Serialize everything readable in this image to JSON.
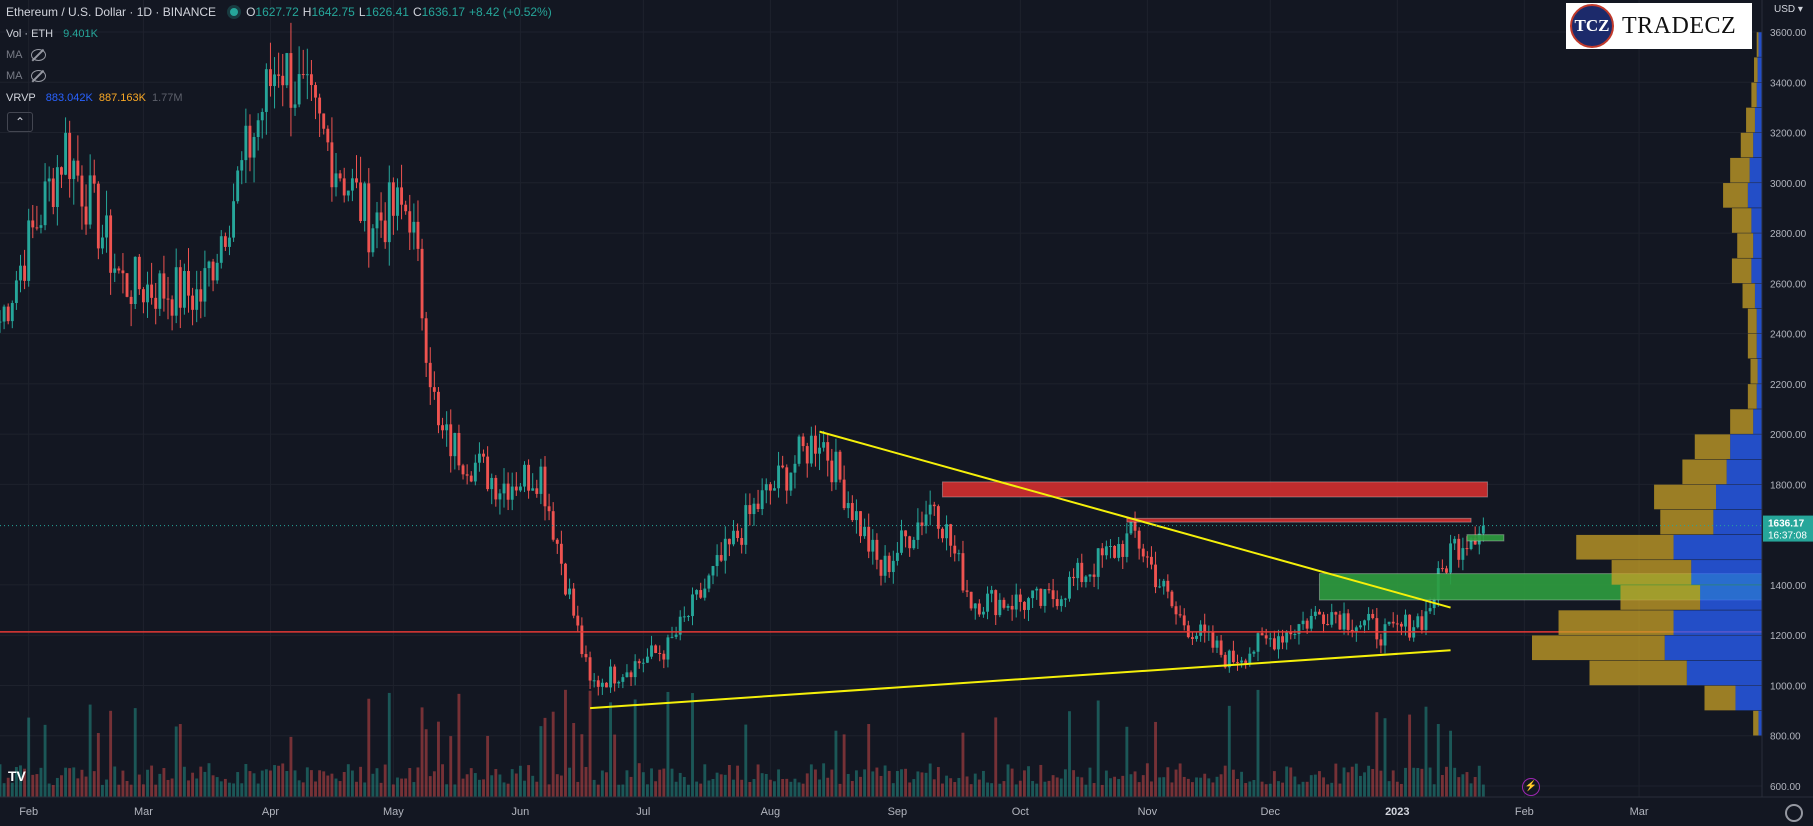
{
  "header": {
    "symbol": "Ethereum / U.S. Dollar · 1D · BINANCE",
    "open_label": "O",
    "open": "1627.72",
    "high_label": "H",
    "high": "1642.75",
    "low_label": "L",
    "low": "1626.41",
    "close_label": "C",
    "close": "1636.17",
    "change": "+8.42 (+0.52%)"
  },
  "indicators": [
    {
      "name": "Vol · ETH",
      "value": "9.401K"
    },
    {
      "name": "MA"
    },
    {
      "name": "MA"
    },
    {
      "name": "VRVP",
      "v1": "883.042K",
      "v2": "887.163K",
      "v3": "1.77M"
    }
  ],
  "collapse_icon": "chevron-up-icon",
  "logo": {
    "mark": "TCZ",
    "text": "TRADECZ"
  },
  "currency": "USD",
  "tv_logo": "TV",
  "colors": {
    "up": "#26a69a",
    "down": "#ef5350",
    "bg": "#131722",
    "trend": "#f5f00a",
    "resistance": "#d32f2f",
    "support_zone": "#2e9e3f",
    "h_line": "#e53935",
    "vp_up": "#2962ff",
    "vp_down": "#c9a227"
  },
  "chart_data": {
    "type": "candlestick",
    "x_ticks": [
      "Feb",
      "Mar",
      "Apr",
      "May",
      "Jun",
      "Jul",
      "Aug",
      "Sep",
      "Oct",
      "Nov",
      "Dec",
      "2023",
      "Feb",
      "Mar"
    ],
    "y_ticks": [
      "3600.00",
      "3400.00",
      "3200.00",
      "3000.00",
      "2800.00",
      "2600.00",
      "2400.00",
      "2200.00",
      "2000.00",
      "1800.00",
      "1400.00",
      "1200.00",
      "1000.00",
      "800.00",
      "600.00"
    ],
    "y_range": [
      580,
      3640
    ],
    "last_price_label": "1636.17",
    "countdown_label": "16:37:08",
    "anchors": [
      [
        "2022-01-25",
        2450
      ],
      [
        "2022-02-10",
        3150
      ],
      [
        "2022-02-24",
        2600
      ],
      [
        "2022-03-15",
        2550
      ],
      [
        "2022-04-03",
        3500
      ],
      [
        "2022-04-25",
        2850
      ],
      [
        "2022-05-05",
        2900
      ],
      [
        "2022-05-12",
        2000
      ],
      [
        "2022-05-27",
        1800
      ],
      [
        "2022-06-06",
        1850
      ],
      [
        "2022-06-18",
        1000
      ],
      [
        "2022-07-07",
        1150
      ],
      [
        "2022-07-28",
        1700
      ],
      [
        "2022-08-13",
        2000
      ],
      [
        "2022-08-28",
        1450
      ],
      [
        "2022-09-10",
        1740
      ],
      [
        "2022-09-19",
        1340
      ],
      [
        "2022-10-07",
        1330
      ],
      [
        "2022-10-29",
        1600
      ],
      [
        "2022-11-08",
        1280
      ],
      [
        "2022-11-21",
        1100
      ],
      [
        "2022-12-15",
        1300
      ],
      [
        "2022-12-30",
        1200
      ],
      [
        "2023-01-08",
        1280
      ],
      [
        "2023-01-14",
        1540
      ],
      [
        "2023-01-21",
        1640
      ],
      [
        "2023-01-22",
        1636
      ]
    ],
    "trendlines": [
      {
        "label": "descending",
        "from": [
          "2022-08-13",
          2010
        ],
        "to": [
          "2023-01-14",
          1310
        ]
      },
      {
        "label": "ascending",
        "from": [
          "2022-06-18",
          910
        ],
        "to": [
          "2023-01-14",
          1140
        ]
      }
    ],
    "zones": [
      {
        "kind": "resistance",
        "from": "2022-09-12",
        "to": "2023-01-23",
        "top": 1810,
        "bottom": 1750
      },
      {
        "kind": "resistance",
        "from": "2022-10-27",
        "to": "2023-01-19",
        "top": 1665,
        "bottom": 1650
      },
      {
        "kind": "support",
        "from": "2022-12-13",
        "to": "2023-03-31",
        "top": 1445,
        "bottom": 1340
      },
      {
        "kind": "support",
        "from": "2023-01-18",
        "to": "2023-01-27",
        "top": 1600,
        "bottom": 1575
      }
    ],
    "horizontal_lines": [
      1213
    ],
    "volume_profile": [
      {
        "price": 3550,
        "up": 4,
        "down": 2
      },
      {
        "price": 3450,
        "up": 5,
        "down": 4
      },
      {
        "price": 3350,
        "up": 6,
        "down": 6
      },
      {
        "price": 3250,
        "up": 8,
        "down": 10
      },
      {
        "price": 3150,
        "up": 10,
        "down": 14
      },
      {
        "price": 3050,
        "up": 14,
        "down": 22
      },
      {
        "price": 2950,
        "up": 16,
        "down": 28
      },
      {
        "price": 2850,
        "up": 12,
        "down": 22
      },
      {
        "price": 2750,
        "up": 10,
        "down": 18
      },
      {
        "price": 2650,
        "up": 12,
        "down": 22
      },
      {
        "price": 2550,
        "up": 8,
        "down": 14
      },
      {
        "price": 2450,
        "up": 6,
        "down": 10
      },
      {
        "price": 2350,
        "up": 6,
        "down": 10
      },
      {
        "price": 2250,
        "up": 5,
        "down": 8
      },
      {
        "price": 2150,
        "up": 6,
        "down": 10
      },
      {
        "price": 2050,
        "up": 10,
        "down": 26
      },
      {
        "price": 1950,
        "up": 36,
        "down": 40
      },
      {
        "price": 1850,
        "up": 40,
        "down": 50
      },
      {
        "price": 1750,
        "up": 52,
        "down": 70
      },
      {
        "price": 1650,
        "up": 55,
        "down": 60
      },
      {
        "price": 1550,
        "up": 100,
        "down": 110
      },
      {
        "price": 1450,
        "up": 80,
        "down": 90
      },
      {
        "price": 1350,
        "up": 70,
        "down": 90
      },
      {
        "price": 1250,
        "up": 100,
        "down": 130
      },
      {
        "price": 1150,
        "up": 110,
        "down": 150
      },
      {
        "price": 1050,
        "up": 85,
        "down": 110
      },
      {
        "price": 950,
        "up": 30,
        "down": 35
      },
      {
        "price": 850,
        "up": 4,
        "down": 6
      }
    ]
  }
}
